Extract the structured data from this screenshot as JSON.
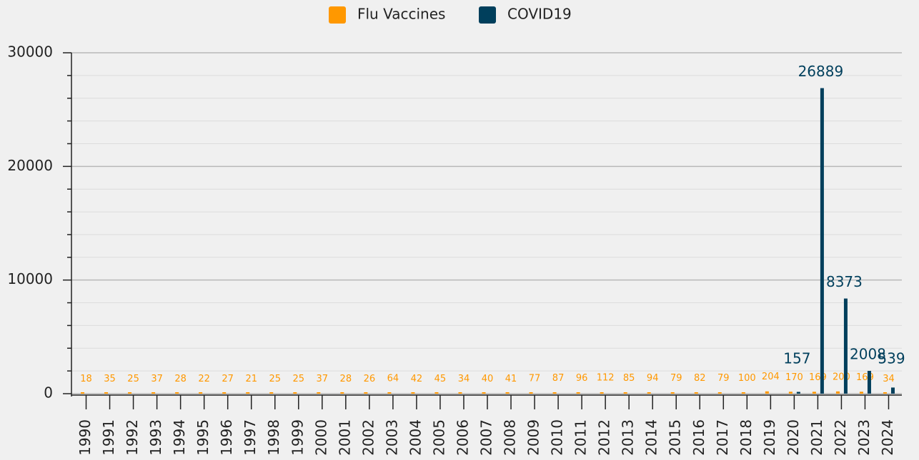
{
  "chart_data": {
    "type": "bar",
    "categories": [
      "1990",
      "1991",
      "1992",
      "1993",
      "1994",
      "1995",
      "1996",
      "1997",
      "1998",
      "1999",
      "2000",
      "2001",
      "2002",
      "2003",
      "2004",
      "2005",
      "2006",
      "2007",
      "2008",
      "2009",
      "2010",
      "2011",
      "2012",
      "2013",
      "2014",
      "2015",
      "2016",
      "2017",
      "2018",
      "2019",
      "2020",
      "2021",
      "2022",
      "2023",
      "2024"
    ],
    "series": [
      {
        "name": "Flu Vaccines",
        "color": "#ff9800",
        "values": [
          18,
          35,
          25,
          37,
          28,
          22,
          27,
          21,
          25,
          25,
          37,
          28,
          26,
          64,
          42,
          45,
          34,
          40,
          41,
          77,
          87,
          96,
          112,
          85,
          94,
          79,
          82,
          79,
          100,
          204,
          170,
          169,
          200,
          169,
          34
        ]
      },
      {
        "name": "COVID19",
        "color": "#003f5c",
        "values": [
          null,
          null,
          null,
          null,
          null,
          null,
          null,
          null,
          null,
          null,
          null,
          null,
          null,
          null,
          null,
          null,
          null,
          null,
          null,
          null,
          null,
          null,
          null,
          null,
          null,
          null,
          null,
          null,
          null,
          null,
          157,
          26889,
          8373,
          2008,
          539
        ]
      }
    ],
    "ylim": [
      0,
      30000
    ],
    "yticks": [
      0,
      10000,
      20000,
      30000
    ],
    "yminorticks": [
      2000,
      4000,
      6000,
      8000,
      12000,
      14000,
      16000,
      18000,
      22000,
      24000,
      26000,
      28000
    ],
    "grid": true,
    "legend": "top"
  }
}
